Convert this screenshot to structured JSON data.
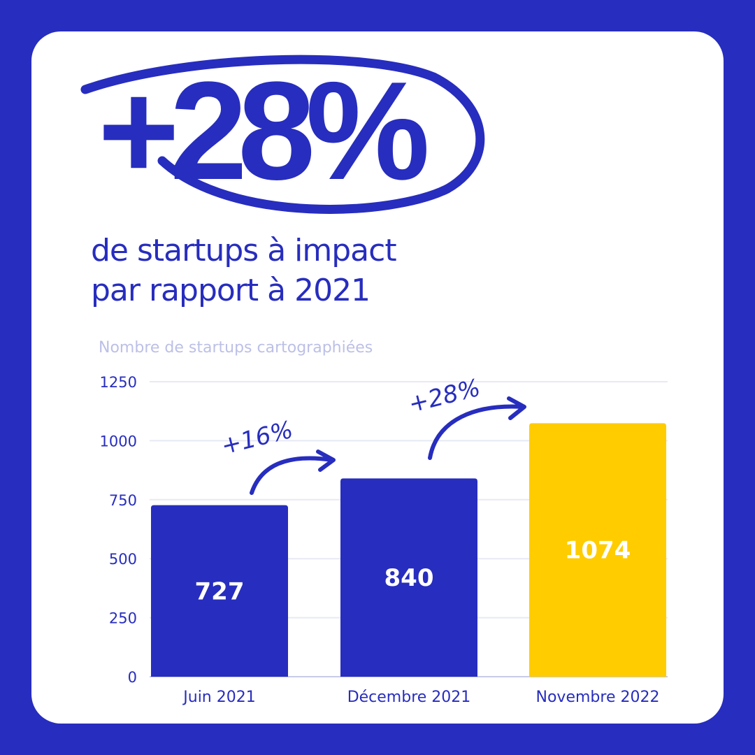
{
  "headline": {
    "value": "+28%",
    "line1": "de startups à impact",
    "line2": "par rapport à 2021"
  },
  "colors": {
    "background": "#272dbe",
    "card": "#ffffff",
    "primary": "#272dbe",
    "highlight": "#ffcc00",
    "grid": "#e8e9f3",
    "subtitle": "#bcc0e6"
  },
  "chart_data": {
    "type": "bar",
    "title": "Nombre de startups cartographiées",
    "categories": [
      "Juin 2021",
      "Décembre 2021",
      "Novembre 2022"
    ],
    "values": [
      727,
      840,
      1074
    ],
    "data_labels": [
      "727",
      "840",
      "1074"
    ],
    "bar_colors": [
      "#272dbe",
      "#272dbe",
      "#ffcc00"
    ],
    "ylim": [
      0,
      1250
    ],
    "yticks": [
      0,
      250,
      500,
      750,
      1000,
      1250
    ],
    "grid": true,
    "annotations": [
      {
        "text": "+16%",
        "from": "Juin 2021",
        "to": "Décembre 2021"
      },
      {
        "text": "+28%",
        "from": "Décembre 2021",
        "to": "Novembre 2022"
      }
    ]
  }
}
